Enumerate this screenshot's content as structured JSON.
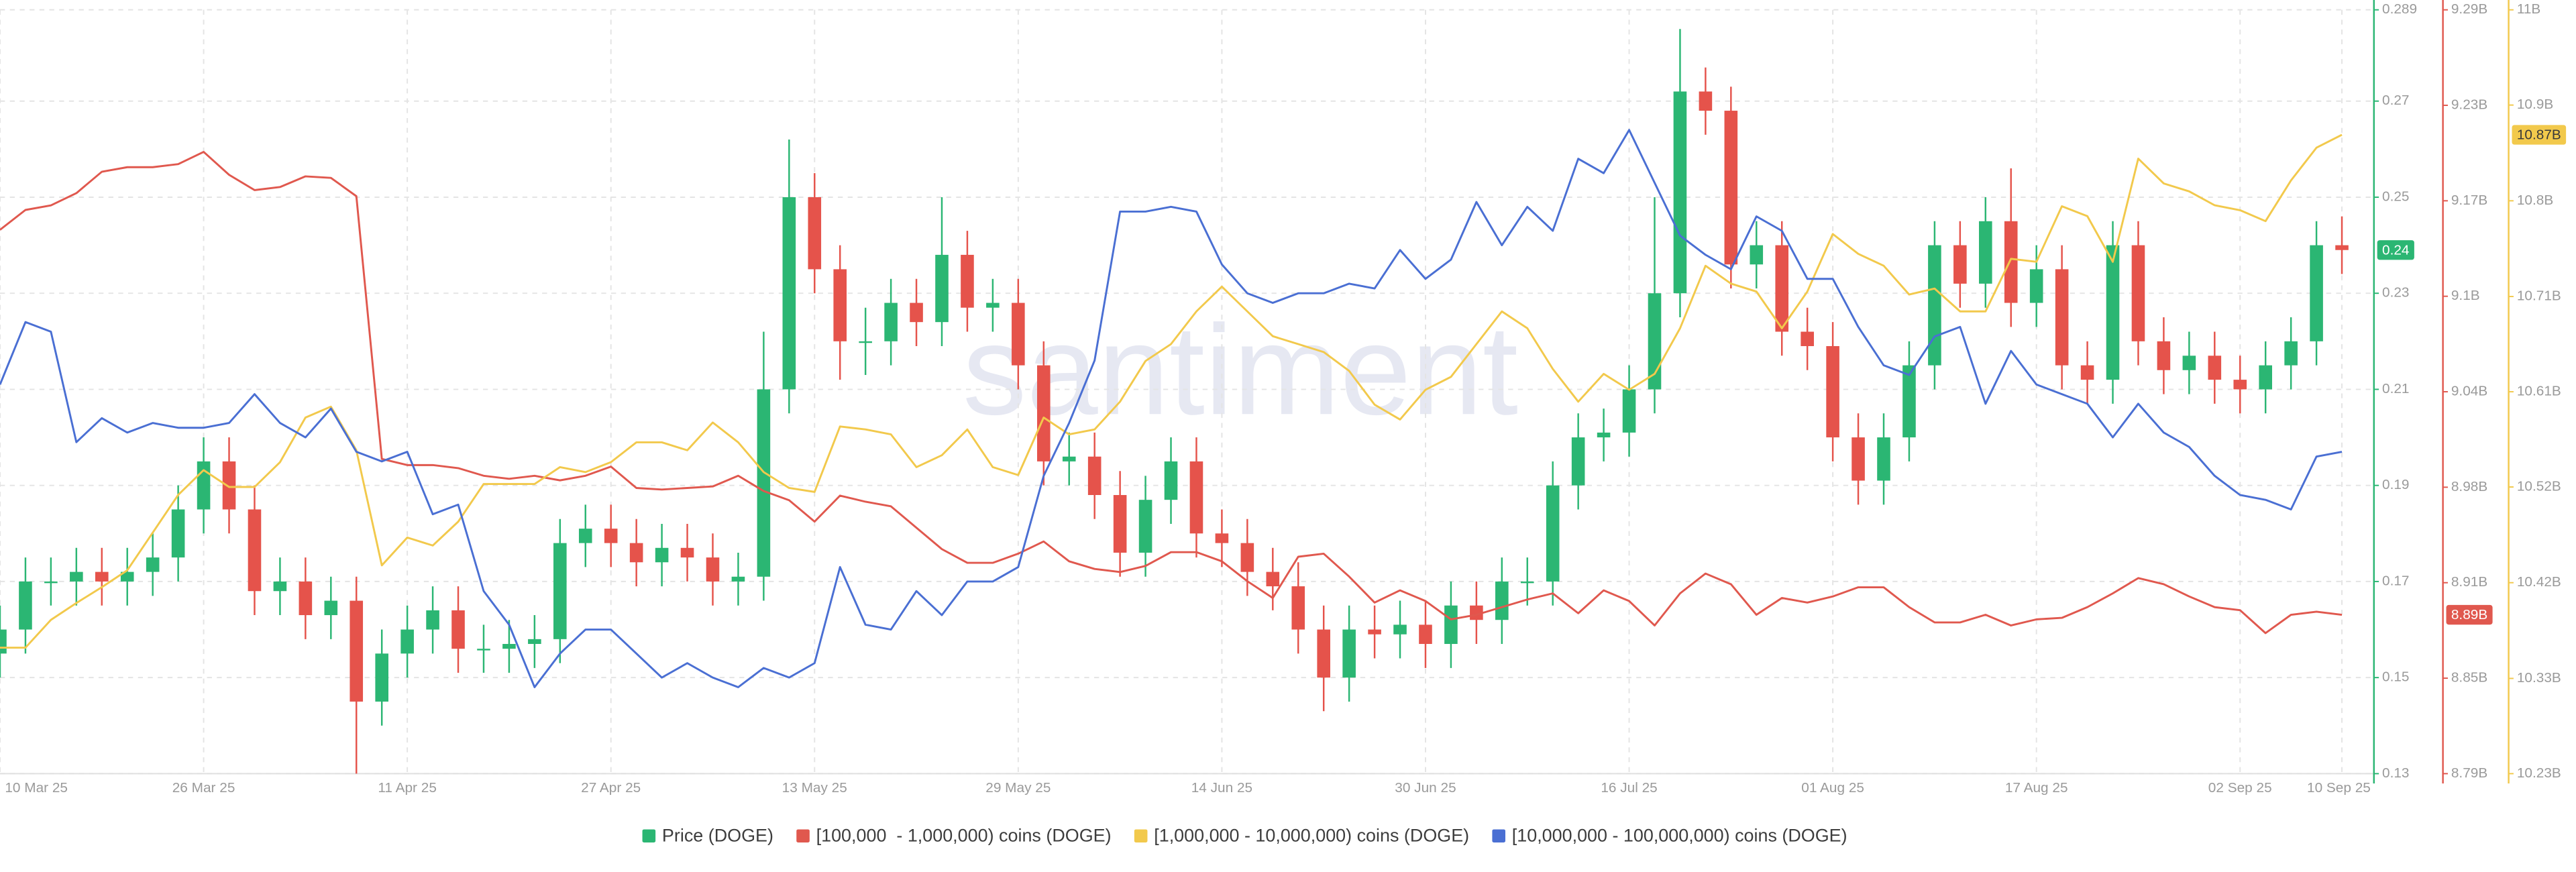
{
  "chart_data": {
    "type": "candlestick",
    "watermark": "santiment",
    "grid": true,
    "x": [
      "2025-03-10",
      "2025-03-12",
      "2025-03-14",
      "2025-03-16",
      "2025-03-18",
      "2025-03-20",
      "2025-03-22",
      "2025-03-24",
      "2025-03-26",
      "2025-03-28",
      "2025-03-30",
      "2025-04-01",
      "2025-04-03",
      "2025-04-05",
      "2025-04-07",
      "2025-04-09",
      "2025-04-11",
      "2025-04-13",
      "2025-04-15",
      "2025-04-17",
      "2025-04-19",
      "2025-04-21",
      "2025-04-23",
      "2025-04-25",
      "2025-04-27",
      "2025-04-29",
      "2025-05-01",
      "2025-05-03",
      "2025-05-05",
      "2025-05-07",
      "2025-05-09",
      "2025-05-11",
      "2025-05-13",
      "2025-05-15",
      "2025-05-17",
      "2025-05-19",
      "2025-05-21",
      "2025-05-23",
      "2025-05-25",
      "2025-05-27",
      "2025-05-29",
      "2025-05-31",
      "2025-06-02",
      "2025-06-04",
      "2025-06-06",
      "2025-06-08",
      "2025-06-10",
      "2025-06-12",
      "2025-06-14",
      "2025-06-16",
      "2025-06-18",
      "2025-06-20",
      "2025-06-22",
      "2025-06-24",
      "2025-06-26",
      "2025-06-28",
      "2025-06-30",
      "2025-07-02",
      "2025-07-04",
      "2025-07-06",
      "2025-07-08",
      "2025-07-10",
      "2025-07-12",
      "2025-07-14",
      "2025-07-16",
      "2025-07-18",
      "2025-07-20",
      "2025-07-22",
      "2025-07-24",
      "2025-07-26",
      "2025-07-28",
      "2025-07-30",
      "2025-08-01",
      "2025-08-03",
      "2025-08-05",
      "2025-08-07",
      "2025-08-09",
      "2025-08-11",
      "2025-08-13",
      "2025-08-15",
      "2025-08-17",
      "2025-08-19",
      "2025-08-21",
      "2025-08-23",
      "2025-08-25",
      "2025-08-27",
      "2025-08-29",
      "2025-08-31",
      "2025-09-02",
      "2025-09-04",
      "2025-09-06",
      "2025-09-08",
      "2025-09-10"
    ],
    "xlim": [
      "2025-03-10",
      "2025-09-12"
    ],
    "xticks": [
      {
        "value": "2025-03-10",
        "label": "10 Mar 25"
      },
      {
        "value": "2025-03-26",
        "label": "26 Mar 25"
      },
      {
        "value": "2025-04-11",
        "label": "11 Apr 25"
      },
      {
        "value": "2025-04-27",
        "label": "27 Apr 25"
      },
      {
        "value": "2025-05-13",
        "label": "13 May 25"
      },
      {
        "value": "2025-05-29",
        "label": "29 May 25"
      },
      {
        "value": "2025-06-14",
        "label": "14 Jun 25"
      },
      {
        "value": "2025-06-30",
        "label": "30 Jun 25"
      },
      {
        "value": "2025-07-16",
        "label": "16 Jul 25"
      },
      {
        "value": "2025-08-01",
        "label": "01 Aug 25"
      },
      {
        "value": "2025-08-17",
        "label": "17 Aug 25"
      },
      {
        "value": "2025-09-02",
        "label": "02 Sep 25"
      },
      {
        "value": "2025-09-10",
        "label": "10 Sep 25"
      }
    ],
    "ylim": [
      0.13,
      0.289
    ],
    "yticks": [
      0.13,
      0.15,
      0.17,
      0.19,
      0.21,
      0.23,
      0.25,
      0.27,
      0.289
    ],
    "y2lim": [
      8.79,
      9.29
    ],
    "y2ticks": [
      {
        "value": 8.79,
        "label": "8.79B"
      },
      {
        "value": 8.8525,
        "label": "8.85B"
      },
      {
        "value": 8.915,
        "label": "8.91B"
      },
      {
        "value": 8.9775,
        "label": "8.98B"
      },
      {
        "value": 9.04,
        "label": "9.04B"
      },
      {
        "value": 9.1025,
        "label": "9.1B"
      },
      {
        "value": 9.165,
        "label": "9.17B"
      },
      {
        "value": 9.2275,
        "label": "9.23B"
      },
      {
        "value": 9.29,
        "label": "9.29B"
      }
    ],
    "y3lim": [
      10.23,
      11
    ],
    "y3ticks": [
      {
        "value": 10.23,
        "label": "10.23B"
      },
      {
        "value": 10.326,
        "label": "10.33B"
      },
      {
        "value": 10.4225,
        "label": "10.42B"
      },
      {
        "value": 10.519,
        "label": "10.52B"
      },
      {
        "value": 10.615,
        "label": "10.61B"
      },
      {
        "value": 10.711,
        "label": "10.71B"
      },
      {
        "value": 10.8075,
        "label": "10.8B"
      },
      {
        "value": 10.904,
        "label": "10.9B"
      },
      {
        "value": 11,
        "label": "11B"
      }
    ],
    "series": [
      {
        "name": "Price (DOGE)",
        "type": "candlestick",
        "axis": "y",
        "up_color": "#2bb673",
        "down_color": "#e5534b",
        "last_label": "0.24",
        "open": [
          0.155,
          0.16,
          0.17,
          0.17,
          0.172,
          0.17,
          0.172,
          0.175,
          0.185,
          0.195,
          0.185,
          0.168,
          0.17,
          0.163,
          0.166,
          0.145,
          0.155,
          0.16,
          0.164,
          0.156,
          0.156,
          0.157,
          0.158,
          0.178,
          0.181,
          0.178,
          0.174,
          0.177,
          0.175,
          0.17,
          0.171,
          0.21,
          0.25,
          0.235,
          0.22,
          0.22,
          0.228,
          0.224,
          0.238,
          0.227,
          0.228,
          0.215,
          0.195,
          0.196,
          0.188,
          0.176,
          0.187,
          0.195,
          0.18,
          0.178,
          0.172,
          0.169,
          0.16,
          0.15,
          0.16,
          0.159,
          0.161,
          0.157,
          0.165,
          0.162,
          0.17,
          0.17,
          0.19,
          0.2,
          0.201,
          0.21,
          0.23,
          0.272,
          0.268,
          0.236,
          0.24,
          0.222,
          0.219,
          0.2,
          0.191,
          0.2,
          0.215,
          0.24,
          0.232,
          0.245,
          0.228,
          0.235,
          0.215,
          0.212,
          0.24,
          0.22,
          0.214,
          0.217,
          0.212,
          0.21,
          0.215,
          0.22,
          0.24
        ],
        "high": [
          0.165,
          0.175,
          0.175,
          0.177,
          0.177,
          0.177,
          0.18,
          0.19,
          0.2,
          0.2,
          0.19,
          0.175,
          0.175,
          0.171,
          0.171,
          0.16,
          0.165,
          0.169,
          0.169,
          0.161,
          0.162,
          0.163,
          0.183,
          0.186,
          0.186,
          0.183,
          0.182,
          0.182,
          0.18,
          0.176,
          0.222,
          0.262,
          0.255,
          0.24,
          0.227,
          0.233,
          0.233,
          0.25,
          0.243,
          0.233,
          0.233,
          0.22,
          0.201,
          0.201,
          0.193,
          0.192,
          0.2,
          0.2,
          0.185,
          0.183,
          0.177,
          0.174,
          0.165,
          0.165,
          0.165,
          0.166,
          0.166,
          0.17,
          0.17,
          0.175,
          0.175,
          0.195,
          0.205,
          0.206,
          0.215,
          0.25,
          0.285,
          0.277,
          0.273,
          0.245,
          0.245,
          0.227,
          0.224,
          0.205,
          0.205,
          0.22,
          0.245,
          0.245,
          0.25,
          0.256,
          0.24,
          0.24,
          0.22,
          0.245,
          0.245,
          0.225,
          0.222,
          0.222,
          0.217,
          0.22,
          0.225,
          0.245,
          0.246
        ],
        "low": [
          0.15,
          0.155,
          0.165,
          0.165,
          0.165,
          0.165,
          0.167,
          0.17,
          0.18,
          0.18,
          0.163,
          0.163,
          0.158,
          0.158,
          0.13,
          0.14,
          0.15,
          0.155,
          0.151,
          0.151,
          0.151,
          0.152,
          0.153,
          0.173,
          0.173,
          0.169,
          0.169,
          0.17,
          0.165,
          0.165,
          0.166,
          0.205,
          0.23,
          0.212,
          0.213,
          0.215,
          0.219,
          0.219,
          0.222,
          0.222,
          0.21,
          0.19,
          0.19,
          0.183,
          0.171,
          0.171,
          0.182,
          0.175,
          0.173,
          0.167,
          0.164,
          0.155,
          0.143,
          0.145,
          0.154,
          0.154,
          0.152,
          0.152,
          0.157,
          0.157,
          0.165,
          0.165,
          0.185,
          0.195,
          0.196,
          0.205,
          0.225,
          0.263,
          0.231,
          0.231,
          0.217,
          0.214,
          0.195,
          0.186,
          0.186,
          0.195,
          0.21,
          0.227,
          0.227,
          0.223,
          0.223,
          0.21,
          0.207,
          0.207,
          0.215,
          0.209,
          0.209,
          0.207,
          0.205,
          0.205,
          0.21,
          0.215,
          0.234
        ],
        "close": [
          0.16,
          0.17,
          0.17,
          0.172,
          0.17,
          0.172,
          0.175,
          0.185,
          0.195,
          0.185,
          0.168,
          0.17,
          0.163,
          0.166,
          0.145,
          0.155,
          0.16,
          0.164,
          0.156,
          0.156,
          0.157,
          0.158,
          0.178,
          0.181,
          0.178,
          0.174,
          0.177,
          0.175,
          0.17,
          0.171,
          0.21,
          0.25,
          0.235,
          0.22,
          0.22,
          0.228,
          0.224,
          0.238,
          0.227,
          0.228,
          0.215,
          0.195,
          0.196,
          0.188,
          0.176,
          0.187,
          0.195,
          0.18,
          0.178,
          0.172,
          0.169,
          0.16,
          0.15,
          0.16,
          0.159,
          0.161,
          0.157,
          0.165,
          0.162,
          0.17,
          0.17,
          0.19,
          0.2,
          0.201,
          0.21,
          0.23,
          0.272,
          0.268,
          0.236,
          0.24,
          0.222,
          0.219,
          0.2,
          0.191,
          0.2,
          0.215,
          0.24,
          0.232,
          0.245,
          0.228,
          0.235,
          0.215,
          0.212,
          0.24,
          0.22,
          0.214,
          0.217,
          0.212,
          0.21,
          0.215,
          0.22,
          0.24,
          0.239
        ]
      },
      {
        "name": "[100,000  - 1,000,000) coins (DOGE)",
        "type": "line",
        "axis": "y2",
        "color": "#e0584e",
        "last_label": "8.89B",
        "values": [
          9.146,
          9.159,
          9.162,
          9.17,
          9.184,
          9.187,
          9.187,
          9.189,
          9.197,
          9.182,
          9.172,
          9.174,
          9.181,
          9.18,
          9.168,
          8.996,
          8.992,
          8.992,
          8.99,
          8.985,
          8.983,
          8.985,
          8.982,
          8.985,
          8.991,
          8.977,
          8.976,
          8.977,
          8.978,
          8.985,
          8.975,
          8.969,
          8.955,
          8.972,
          8.968,
          8.965,
          8.951,
          8.937,
          8.928,
          8.928,
          8.934,
          8.942,
          8.929,
          8.924,
          8.922,
          8.926,
          8.935,
          8.935,
          8.929,
          8.916,
          8.905,
          8.932,
          8.934,
          8.919,
          8.902,
          8.91,
          8.903,
          8.891,
          8.894,
          8.899,
          8.904,
          8.908,
          8.895,
          8.91,
          8.903,
          8.887,
          8.908,
          8.921,
          8.914,
          8.894,
          8.905,
          8.902,
          8.906,
          8.912,
          8.912,
          8.899,
          8.889,
          8.889,
          8.894,
          8.887,
          8.891,
          8.892,
          8.899,
          8.908,
          8.918,
          8.914,
          8.906,
          8.899,
          8.897,
          8.882,
          8.894,
          8.896,
          8.894
        ]
      },
      {
        "name": "[1,000,000 - 10,000,000) coins (DOGE)",
        "type": "line",
        "axis": "y3",
        "color": "#f2c94c",
        "last_label": "10.87B",
        "values": [
          10.357,
          10.357,
          10.385,
          10.402,
          10.418,
          10.435,
          10.473,
          10.511,
          10.536,
          10.519,
          10.519,
          10.544,
          10.589,
          10.6,
          10.556,
          10.44,
          10.468,
          10.46,
          10.484,
          10.522,
          10.522,
          10.522,
          10.539,
          10.534,
          10.544,
          10.564,
          10.564,
          10.556,
          10.584,
          10.564,
          10.534,
          10.518,
          10.514,
          10.58,
          10.577,
          10.572,
          10.539,
          10.551,
          10.577,
          10.539,
          10.531,
          10.589,
          10.572,
          10.577,
          10.605,
          10.646,
          10.663,
          10.696,
          10.721,
          10.696,
          10.671,
          10.663,
          10.655,
          10.636,
          10.602,
          10.587,
          10.617,
          10.63,
          10.663,
          10.696,
          10.679,
          10.638,
          10.605,
          10.633,
          10.617,
          10.633,
          10.679,
          10.742,
          10.724,
          10.716,
          10.679,
          10.716,
          10.774,
          10.754,
          10.742,
          10.713,
          10.719,
          10.696,
          10.696,
          10.749,
          10.746,
          10.802,
          10.792,
          10.746,
          10.85,
          10.825,
          10.817,
          10.803,
          10.798,
          10.787,
          10.828,
          10.861,
          10.874
        ]
      },
      {
        "name": "[10,000,000 - 100,000,000) coins (DOGE)",
        "type": "line",
        "axis": "y",
        "color": "#4a6fd3",
        "values": [
          0.211,
          0.224,
          0.222,
          0.199,
          0.204,
          0.201,
          0.203,
          0.202,
          0.202,
          0.203,
          0.209,
          0.203,
          0.2,
          0.206,
          0.197,
          0.195,
          0.197,
          0.184,
          0.186,
          0.168,
          0.161,
          0.148,
          0.155,
          0.16,
          0.16,
          0.155,
          0.15,
          0.153,
          0.15,
          0.148,
          0.152,
          0.15,
          0.153,
          0.173,
          0.161,
          0.16,
          0.168,
          0.163,
          0.17,
          0.17,
          0.173,
          0.192,
          0.203,
          0.216,
          0.247,
          0.247,
          0.248,
          0.247,
          0.236,
          0.23,
          0.228,
          0.23,
          0.23,
          0.232,
          0.231,
          0.239,
          0.233,
          0.237,
          0.249,
          0.24,
          0.248,
          0.243,
          0.258,
          0.255,
          0.264,
          0.253,
          0.242,
          0.238,
          0.235,
          0.246,
          0.243,
          0.233,
          0.233,
          0.223,
          0.215,
          0.213,
          0.221,
          0.223,
          0.207,
          0.218,
          0.211,
          0.209,
          0.207,
          0.2,
          0.207,
          0.201,
          0.198,
          0.192,
          0.188,
          0.187,
          0.185,
          0.196,
          0.197
        ]
      }
    ]
  }
}
